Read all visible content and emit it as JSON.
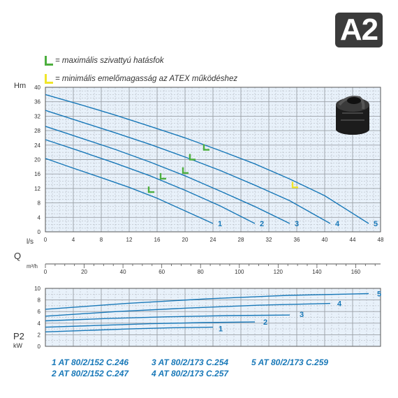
{
  "badge": "A2",
  "legend": [
    {
      "text": "= maximális szivattyú hatásfok",
      "color": "#4caf3e"
    },
    {
      "text": "= minimális emelőmagasság az ATEX működéshez",
      "color": "#f0e62a"
    }
  ],
  "models": [
    {
      "text": "1  AT 80/2/152 C.246"
    },
    {
      "text": "2  AT 80/2/152 C.247"
    },
    {
      "text": "3  AT 80/2/173 C.254"
    },
    {
      "text": "4  AT 80/2/173 C.257"
    },
    {
      "text": "5  AT 80/2/173 C.259"
    }
  ],
  "colors": {
    "curve": "#1878b8",
    "grid": "#9aa0a6",
    "plot_bg": "#e8f1fa",
    "green_mark": "#4caf3e",
    "yellow_mark": "#f0e62a"
  },
  "chart_data": [
    {
      "type": "line",
      "ylabel": "Hm",
      "xlabel": "l/s",
      "xlim": [
        0,
        48
      ],
      "ylim": [
        0,
        40
      ],
      "xticks": [
        0,
        4,
        8,
        12,
        16,
        20,
        24,
        28,
        32,
        36,
        40,
        44,
        48
      ],
      "yticks": [
        0,
        4,
        8,
        12,
        16,
        20,
        24,
        28,
        32,
        36,
        40
      ],
      "grid": true,
      "series": [
        {
          "name": "1",
          "x": [
            0,
            4,
            8,
            12,
            16,
            20,
            24
          ],
          "y": [
            20.3,
            17.6,
            15.0,
            12.3,
            9.3,
            5.8,
            2.3
          ]
        },
        {
          "name": "2",
          "x": [
            0,
            5,
            10,
            15,
            20,
            25,
            30
          ],
          "y": [
            25.5,
            22.3,
            19.0,
            15.5,
            11.5,
            7.2,
            2.3
          ]
        },
        {
          "name": "3",
          "x": [
            0,
            5,
            10,
            15,
            20,
            25,
            30,
            35
          ],
          "y": [
            29.2,
            26.0,
            22.8,
            19.3,
            15.5,
            11.3,
            7.0,
            2.3
          ]
        },
        {
          "name": "4",
          "x": [
            0,
            5,
            10,
            15,
            20,
            25,
            30,
            35,
            40.8
          ],
          "y": [
            33.6,
            30.5,
            27.4,
            24.2,
            20.7,
            17.0,
            12.9,
            8.6,
            2.3
          ]
        },
        {
          "name": "5",
          "x": [
            0,
            5,
            10,
            15,
            20,
            25,
            30,
            35,
            40,
            46.3
          ],
          "y": [
            38.0,
            35.2,
            32.3,
            29.2,
            26.0,
            22.5,
            18.8,
            14.6,
            10.0,
            2.3
          ]
        }
      ],
      "markers_max_efficiency": [
        {
          "x": 14.8,
          "y": 11.0
        },
        {
          "x": 16.5,
          "y": 14.7
        },
        {
          "x": 19.7,
          "y": 16.3
        },
        {
          "x": 20.7,
          "y": 20.0
        },
        {
          "x": 22.7,
          "y": 22.7
        }
      ],
      "markers_min_atex": [
        {
          "x": 35.4,
          "y": 12.3
        }
      ]
    },
    {
      "type": "axis",
      "ylabel": "Q",
      "xlabel": "m³/h",
      "xlim": [
        0,
        172.8
      ],
      "xticks": [
        0,
        20,
        40,
        60,
        80,
        100,
        120,
        140,
        160
      ]
    },
    {
      "type": "line",
      "ylabel": "P2",
      "unit": "kW",
      "xlim": [
        0,
        48
      ],
      "ylim": [
        0,
        10
      ],
      "yticks": [
        0,
        2,
        4,
        6,
        8,
        10
      ],
      "grid": true,
      "series": [
        {
          "name": "1",
          "x": [
            0,
            6,
            12,
            18,
            24
          ],
          "y": [
            2.5,
            2.75,
            3.0,
            3.2,
            3.3
          ]
        },
        {
          "name": "2",
          "x": [
            0,
            7.5,
            15,
            22.5,
            30
          ],
          "y": [
            3.3,
            3.6,
            3.9,
            4.1,
            4.2
          ]
        },
        {
          "name": "3",
          "x": [
            0,
            8.75,
            17.5,
            26.25,
            35
          ],
          "y": [
            4.4,
            4.8,
            5.1,
            5.3,
            5.4
          ]
        },
        {
          "name": "4",
          "x": [
            0,
            10.2,
            20.4,
            30.6,
            40.8
          ],
          "y": [
            5.2,
            6.0,
            6.6,
            7.1,
            7.4
          ]
        },
        {
          "name": "5",
          "x": [
            0,
            11.6,
            23.2,
            34.8,
            46.3
          ],
          "y": [
            6.4,
            7.4,
            8.2,
            8.8,
            9.1
          ]
        }
      ]
    }
  ]
}
